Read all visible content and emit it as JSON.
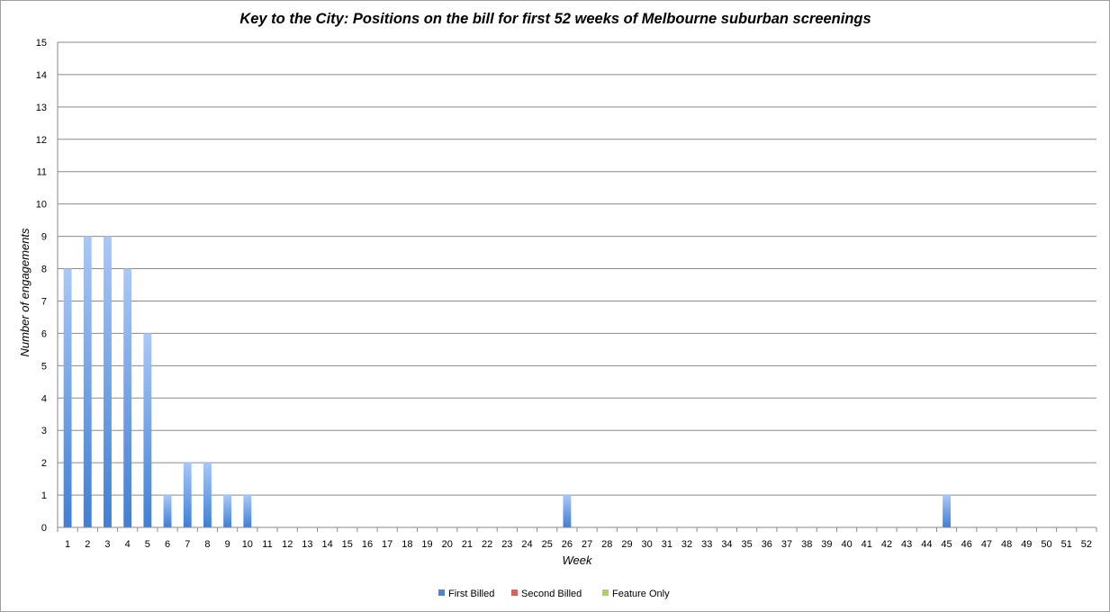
{
  "chart_data": {
    "type": "bar",
    "title": "Key to the City: Positions on the bill for first 52 weeks of Melbourne suburban screenings",
    "xlabel": "Week",
    "ylabel": "Number of engagements",
    "ylim": [
      0,
      15
    ],
    "yticks": [
      "0",
      "1",
      "2",
      "3",
      "4",
      "5",
      "6",
      "7",
      "8",
      "9",
      "10",
      "11",
      "12",
      "13",
      "14",
      "15"
    ],
    "categories": [
      "1",
      "2",
      "3",
      "4",
      "5",
      "6",
      "7",
      "8",
      "9",
      "10",
      "11",
      "12",
      "13",
      "14",
      "15",
      "16",
      "17",
      "18",
      "19",
      "20",
      "21",
      "22",
      "23",
      "24",
      "25",
      "26",
      "27",
      "28",
      "29",
      "30",
      "31",
      "32",
      "33",
      "34",
      "35",
      "36",
      "37",
      "38",
      "39",
      "40",
      "41",
      "42",
      "43",
      "44",
      "45",
      "46",
      "47",
      "48",
      "49",
      "50",
      "51",
      "52"
    ],
    "series": [
      {
        "name": "First Billed",
        "color": "#4a86d8",
        "values": [
          8,
          9,
          9,
          8,
          6,
          1,
          2,
          2,
          1,
          1,
          0,
          0,
          0,
          0,
          0,
          0,
          0,
          0,
          0,
          0,
          0,
          0,
          0,
          0,
          0,
          1,
          0,
          0,
          0,
          0,
          0,
          0,
          0,
          0,
          0,
          0,
          0,
          0,
          0,
          0,
          0,
          0,
          0,
          0,
          1,
          0,
          0,
          0,
          0,
          0,
          0,
          0
        ]
      },
      {
        "name": "Second Billed",
        "color": "#e0605a",
        "values": [
          0,
          0,
          0,
          0,
          0,
          0,
          0,
          0,
          0,
          0,
          0,
          0,
          0,
          0,
          0,
          0,
          0,
          0,
          0,
          0,
          0,
          0,
          0,
          0,
          0,
          0,
          0,
          0,
          0,
          0,
          0,
          0,
          0,
          0,
          0,
          0,
          0,
          0,
          0,
          0,
          0,
          0,
          0,
          0,
          0,
          0,
          0,
          0,
          0,
          0,
          0,
          0
        ]
      },
      {
        "name": "Feature Only",
        "color": "#a9d35a",
        "values": [
          0,
          0,
          0,
          0,
          0,
          0,
          0,
          0,
          0,
          0,
          0,
          0,
          0,
          0,
          0,
          0,
          0,
          0,
          0,
          0,
          0,
          0,
          0,
          0,
          0,
          0,
          0,
          0,
          0,
          0,
          0,
          0,
          0,
          0,
          0,
          0,
          0,
          0,
          0,
          0,
          0,
          0,
          0,
          0,
          0,
          0,
          0,
          0,
          0,
          0,
          0,
          0
        ]
      }
    ],
    "stacked": true,
    "grid": true,
    "legend_position": "bottom"
  }
}
